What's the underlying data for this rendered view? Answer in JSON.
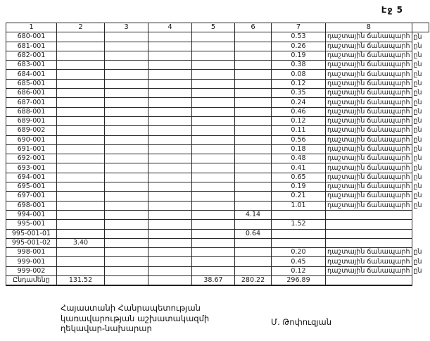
{
  "page": {
    "number_label": "Էջ 5"
  },
  "table": {
    "headers": [
      "1",
      "2",
      "3",
      "4",
      "5",
      "6",
      "7",
      "8"
    ],
    "edge_mark": "ըն",
    "rows": [
      {
        "c1": "680-001",
        "c7": "0.53",
        "c8": "դաշտային ճանապարհ",
        "edge": true
      },
      {
        "c1": "681-001",
        "c7": "0.26",
        "c8": "դաշտային ճանապարհ",
        "edge": true
      },
      {
        "c1": "682-001",
        "c7": "0.19",
        "c8": "դաշտային ճանապարհ",
        "edge": true
      },
      {
        "c1": "683-001",
        "c7": "0.38",
        "c8": "դաշտային ճանապարհ",
        "edge": true
      },
      {
        "c1": "684-001",
        "c7": "0.08",
        "c8": "դաշտային ճանապարհ",
        "edge": true
      },
      {
        "c1": "685-001",
        "c7": "0.12",
        "c8": "դաշտային ճանապարհ",
        "edge": true
      },
      {
        "c1": "686-001",
        "c7": "0.35",
        "c8": "դաշտային ճանապարհ",
        "edge": true
      },
      {
        "c1": "687-001",
        "c7": "0.24",
        "c8": "դաշտային ճանապարհ",
        "edge": true
      },
      {
        "c1": "688-001",
        "c7": "0.46",
        "c8": "դաշտային ճանապարհ",
        "edge": true
      },
      {
        "c1": "689-001",
        "c7": "0.12",
        "c8": "դաշտային ճանապարհ",
        "edge": true
      },
      {
        "c1": "689-002",
        "c7": "0.11",
        "c8": "դաշտային ճանապարհ",
        "edge": true
      },
      {
        "c1": "690-001",
        "c7": "0.56",
        "c8": "դաշտային ճանապարհ",
        "edge": true
      },
      {
        "c1": "691-001",
        "c7": "0.18",
        "c8": "դաշտային ճանապարհ",
        "edge": true
      },
      {
        "c1": "692-001",
        "c7": "0.48",
        "c8": "դաշտային ճանապարհ",
        "edge": true
      },
      {
        "c1": "693-001",
        "c7": "0.41",
        "c8": "դաշտային ճանապարհ",
        "edge": true
      },
      {
        "c1": "694-001",
        "c7": "0.65",
        "c8": "դաշտային ճանապարհ",
        "edge": true
      },
      {
        "c1": "695-001",
        "c7": "0.19",
        "c8": "դաշտային ճանապարհ",
        "edge": true
      },
      {
        "c1": "697-001",
        "c7": "0.21",
        "c8": "դաշտային ճանապարհ",
        "edge": true
      },
      {
        "c1": "698-001",
        "c7": "1.01",
        "c8": "դաշտային ճանապարհ",
        "edge": true
      },
      {
        "c1": "994-001",
        "c6": "4.14"
      },
      {
        "c1": "995-001",
        "c7": "1.52"
      },
      {
        "c1": "995-001-01",
        "c6": "0.64"
      },
      {
        "c1": "995-001-02",
        "c2": "3.40"
      },
      {
        "c1": "998-001",
        "c7": "0.20",
        "c8": "դաշտային ճանապարհ",
        "edge": true
      },
      {
        "c1": "999-001",
        "c7": "0.45",
        "c8": "դաշտային ճանապարհ",
        "edge": true
      },
      {
        "c1": "999-002",
        "c7": "0.12",
        "c8": "դաշտային ճանապարհ",
        "edge": true
      }
    ],
    "total": {
      "c1": "Ընդամենը",
      "c2": "131.52",
      "c5": "38.67",
      "c6": "280.22",
      "c7": "296.89"
    }
  },
  "footer": {
    "left_lines": [
      "Հայաստանի Հանրապետության",
      "կառավարության աշխատակազմի",
      "ղեկավար-նախարար"
    ],
    "signature": "Մ. Թոփուզյան"
  }
}
